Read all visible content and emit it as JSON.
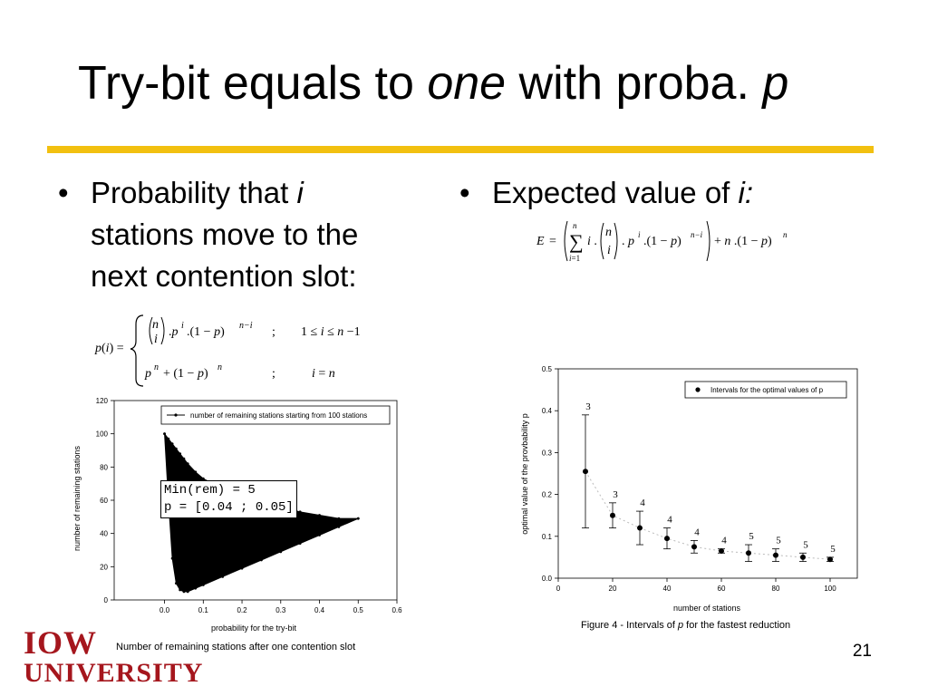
{
  "slide": {
    "title_part1": "Try-bit equals to ",
    "title_italic": "one",
    "title_part2": " with proba. ",
    "title_p": "p",
    "page_number": "21",
    "logo_line1": "IOW",
    "logo_line2": "UNIVERSITY",
    "accent_color": "#f2c010",
    "logo_color": "#a5161d"
  },
  "left": {
    "bullet_text": "Probability that ",
    "bullet_italic": "i",
    "bullet_line2": "stations move to the",
    "bullet_line3": "next contention slot:",
    "caption": "Number of remaining stations after one contention slot",
    "annotation_line1": "Min(rem) = 5",
    "annotation_line2": "p = [0.04 ; 0.05]"
  },
  "right": {
    "bullet_text": "Expected value of ",
    "bullet_italic": "i:",
    "caption_prefix": "Figure 4 - Intervals of ",
    "caption_italic": "p",
    "caption_suffix": " for the fastest reduction"
  },
  "chart_data": [
    {
      "type": "area",
      "xlabel": "probability for the try-bit",
      "ylabel": "number of remaining stations",
      "legend": "number of remaining stations starting from 100 stations",
      "legend_position": "top-right",
      "xlim": [
        -0.13,
        0.6
      ],
      "ylim": [
        0,
        120
      ],
      "x_ticks": [
        "0.0",
        "0.1",
        "0.2",
        "0.3",
        "0.4",
        "0.5",
        "0.6"
      ],
      "y_ticks": [
        "0",
        "20",
        "40",
        "60",
        "80",
        "100",
        "120"
      ],
      "x": [
        0.0,
        0.01,
        0.02,
        0.03,
        0.04,
        0.05,
        0.06,
        0.08,
        0.1,
        0.15,
        0.2,
        0.25,
        0.3,
        0.35,
        0.4,
        0.45,
        0.5
      ],
      "upper": [
        100,
        97,
        94,
        91,
        88,
        85,
        82,
        77,
        73,
        67,
        62,
        59,
        56,
        53,
        51,
        49,
        49
      ],
      "lower": [
        100,
        60,
        25,
        10,
        6,
        5,
        5,
        7,
        9,
        14,
        19,
        24,
        29,
        34,
        39,
        44,
        49
      ],
      "grid": false
    },
    {
      "type": "scatter",
      "xlabel": "number of stations",
      "ylabel": "optimal value of the provbability p",
      "legend": "Intervals for the optimal values of p",
      "legend_position": "top-right",
      "xlim": [
        0,
        110
      ],
      "ylim": [
        0,
        0.5
      ],
      "x_ticks": [
        "0",
        "20",
        "40",
        "60",
        "80",
        "100"
      ],
      "y_ticks": [
        "0.0",
        "0.1",
        "0.2",
        "0.3",
        "0.4",
        "0.5"
      ],
      "x": [
        10,
        20,
        30,
        40,
        50,
        60,
        70,
        80,
        90,
        100
      ],
      "y": [
        0.255,
        0.15,
        0.12,
        0.095,
        0.075,
        0.065,
        0.06,
        0.055,
        0.05,
        0.045
      ],
      "y_low": [
        0.12,
        0.12,
        0.08,
        0.07,
        0.06,
        0.06,
        0.04,
        0.04,
        0.04,
        0.04
      ],
      "y_high": [
        0.39,
        0.18,
        0.16,
        0.12,
        0.09,
        0.07,
        0.08,
        0.07,
        0.06,
        0.05
      ],
      "labels": [
        "3",
        "3",
        "4",
        "4",
        "4",
        "4",
        "5",
        "5",
        "5",
        "5"
      ],
      "grid": false
    }
  ]
}
